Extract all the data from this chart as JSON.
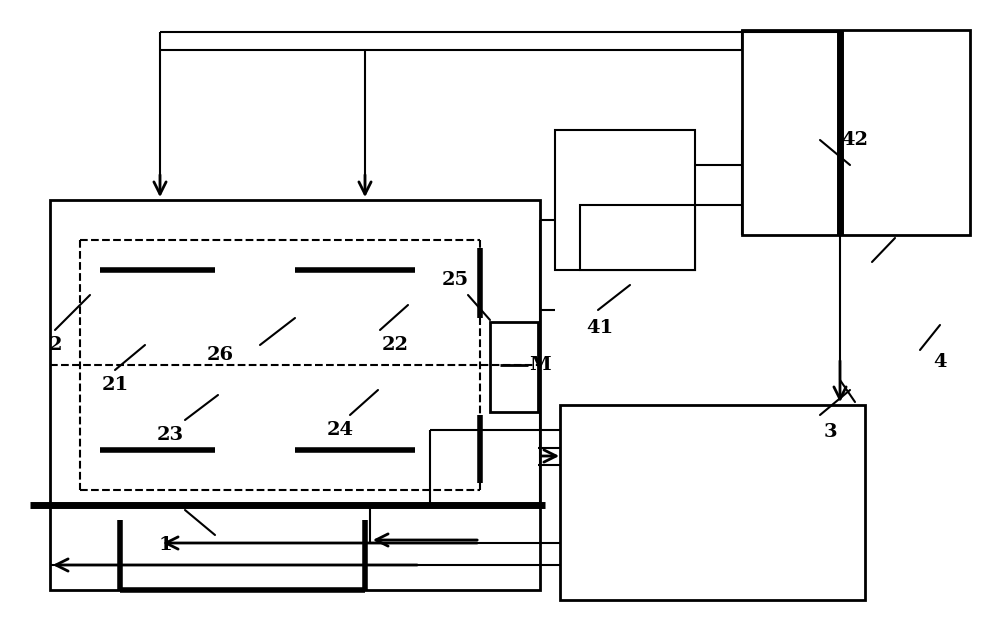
{
  "bg_color": "#ffffff",
  "line_color": "#000000",
  "lw": 1.5,
  "lw_thick": 4.0,
  "lw_med": 2.0,
  "figsize": [
    10.0,
    6.34
  ],
  "dpi": 100
}
